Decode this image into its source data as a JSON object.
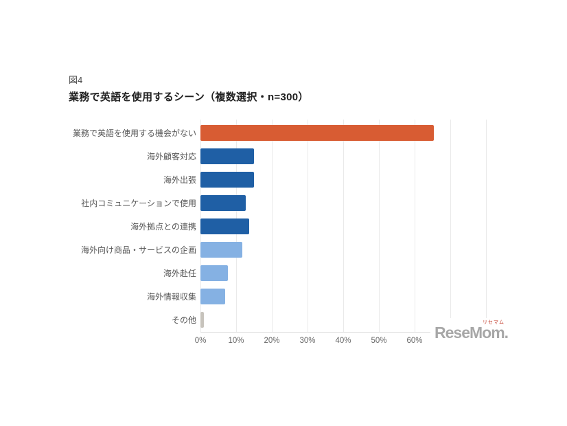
{
  "figure_label": "図4",
  "title": "業務で英語を使用するシーン（複数選択・n=300）",
  "watermark": {
    "text": "ReseMom.",
    "kana": "リセマム",
    "text_color": "#a7a7a7",
    "kana_color": "#c23b2a"
  },
  "chart_data": {
    "type": "bar",
    "orientation": "horizontal",
    "title": "業務で英語を使用するシーン（複数選択・n=300）",
    "sample_note": "複数選択・n=300",
    "categories": [
      "業務で英語を使用する機会がない",
      "海外顧客対応",
      "海外出張",
      "社内コミュニケーションで使用",
      "海外拠点との連携",
      "海外向け商品・サービスの企画",
      "海外赴任",
      "海外情報収集",
      "その他"
    ],
    "values": [
      65.3,
      15.0,
      15.0,
      12.7,
      13.7,
      11.7,
      7.7,
      7.0,
      1.0
    ],
    "unit": "%",
    "bar_colors": [
      "#d85c33",
      "#1f5fa5",
      "#1f5fa5",
      "#1f5fa5",
      "#1f5fa5",
      "#85b1e3",
      "#85b1e3",
      "#85b1e3",
      "#c7c3bc"
    ],
    "xlim": [
      0,
      80
    ],
    "x_ticks": [
      "0%",
      "10%",
      "20%",
      "30%",
      "40%",
      "50%",
      "60%"
    ],
    "tick_interval": 10,
    "grid": true,
    "gridline_color": "#eaeaea",
    "legend": false,
    "xlabel": "",
    "ylabel": ""
  }
}
